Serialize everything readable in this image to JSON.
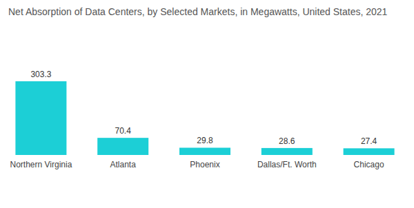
{
  "chart_data": {
    "type": "bar",
    "title": "Net Absorption of Data Centers, by Selected Markets, in Megawatts, United States, 2021",
    "categories": [
      "Northern Virginia",
      "Atlanta",
      "Phoenix",
      "Dallas/Ft. Worth",
      "Chicago"
    ],
    "values": [
      303.3,
      70.4,
      29.8,
      28.6,
      27.4
    ],
    "color": "#1ccfd6",
    "data_labels": true,
    "tick_labels": "x",
    "grid": false
  }
}
